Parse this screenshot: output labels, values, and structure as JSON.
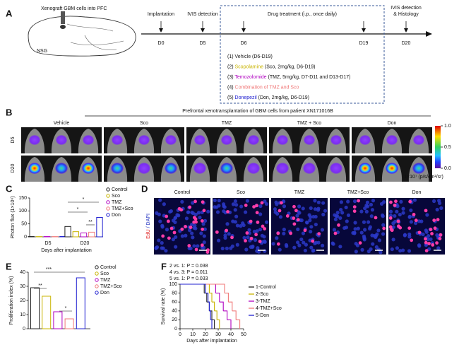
{
  "panel_a": {
    "label": "A",
    "xenograft": "Xenograft GBM cells into PFC",
    "strain": "NSG",
    "box_title": "Drug treatment (i.p., once daily)",
    "timeline": [
      {
        "day": "D0",
        "label": [
          "Implantation"
        ]
      },
      {
        "day": "D5",
        "label": [
          "IVIS detection"
        ]
      },
      {
        "day": "D6"
      },
      {
        "day": "D19"
      },
      {
        "day": "D20",
        "label": [
          "IVIS detection",
          "& Histology"
        ]
      }
    ],
    "treatments": [
      {
        "num": "(1)",
        "name": "Vehicle",
        "detail": "(D6-D19)",
        "color": "#222222"
      },
      {
        "num": "(2)",
        "name": "Scopolamine",
        "detail": "(Sco, 2mg/kg, D6-D19)",
        "color": "#c8b400"
      },
      {
        "num": "(3)",
        "name": "Temozolomide",
        "detail": "(TMZ, 5mg/kg, D7-D11 and D13-D17)",
        "color": "#b000c0"
      },
      {
        "num": "(4)",
        "name": "Combination of TMZ and Sco",
        "color": "#f07878"
      },
      {
        "num": "(5)",
        "name": "Donepezil",
        "detail": "(Don, 2mg/kg, D6-D19)",
        "color": "#2020d0"
      }
    ]
  },
  "panel_b": {
    "label": "B",
    "title": "Prefrontal xenotransplantation of GBM cells from patient XN171016B",
    "groups": [
      "Vehicle",
      "Sco",
      "TMZ",
      "TMZ + Sco",
      "Don"
    ],
    "rows": [
      "D5",
      "D20"
    ],
    "colorbar_ticks": [
      {
        "value": 1,
        "label": "1.0"
      },
      {
        "value": 0.5,
        "label": "0.5"
      },
      {
        "value": 0,
        "label": "0.0"
      }
    ],
    "colorbar_unit": "1×10⁷ (p/s/cm²/sr)"
  },
  "panel_d": {
    "label": "D",
    "groups": [
      "Control",
      "Sco",
      "TMZ",
      "TMZ+Sco",
      "Don"
    ],
    "stain": [
      "EdU",
      "/ DAPI"
    ]
  },
  "chart_data": [
    {
      "type": "grouped_bar",
      "label": "C",
      "ylabel": "Photon flux (1×10⁶)",
      "xlabel": "Days after implantation",
      "categories": [
        "D5",
        "D20"
      ],
      "series": [
        {
          "name": "Control",
          "color": "#222222",
          "values": [
            1.2,
            40
          ]
        },
        {
          "name": "Sco",
          "color": "#c8b400",
          "values": [
            1,
            20
          ]
        },
        {
          "name": "TMZ",
          "color": "#b000c0",
          "values": [
            1.1,
            15
          ]
        },
        {
          "name": "TMZ+Sco",
          "color": "#f07878",
          "values": [
            1,
            18
          ]
        },
        {
          "name": "Don",
          "color": "#2020d0",
          "values": [
            1.3,
            75
          ]
        }
      ],
      "ylim": [
        0,
        150
      ],
      "yticks": [
        0,
        50,
        100,
        150
      ],
      "significance": [
        "*",
        "*",
        "**"
      ]
    },
    {
      "type": "grouped_bar",
      "label": "E",
      "ylabel": "Proliferation index (%)",
      "categories": [
        null
      ],
      "series": [
        {
          "name": "Control",
          "color": "#222222",
          "values": [
            29
          ]
        },
        {
          "name": "Sco",
          "color": "#c8b400",
          "values": [
            23
          ]
        },
        {
          "name": "TMZ",
          "color": "#b000c0",
          "values": [
            12
          ]
        },
        {
          "name": "TMZ+Sco",
          "color": "#f07878",
          "values": [
            7
          ]
        },
        {
          "name": "Don",
          "color": "#2020d0",
          "values": [
            36
          ]
        }
      ],
      "ylim": [
        0,
        40
      ],
      "yticks": [
        0,
        10,
        20,
        30,
        40
      ],
      "significance": [
        "***",
        "**",
        "*"
      ]
    },
    {
      "type": "step",
      "label": "F",
      "ylabel": "Survival rate (%)",
      "xlabel": "Days after implantation",
      "annotations": [
        "2 vs. 1: P = 0.038",
        "4 vs. 3: P = 0.011",
        "5 vs. 1: P = 0.033"
      ],
      "xlim": [
        0,
        50
      ],
      "xticks": [
        0,
        10,
        20,
        30,
        40,
        50
      ],
      "ylim": [
        0,
        100
      ],
      "yticks": [
        0,
        20,
        40,
        60,
        80,
        100
      ],
      "series": [
        {
          "name": "1-Control",
          "color": "#222222",
          "x": [
            0,
            19,
            21,
            23,
            25,
            27
          ],
          "values": [
            100,
            80,
            60,
            40,
            20,
            0
          ]
        },
        {
          "name": "2-Sco",
          "color": "#c8b400",
          "x": [
            0,
            23,
            25,
            27,
            29,
            31
          ],
          "values": [
            100,
            80,
            60,
            40,
            20,
            0
          ]
        },
        {
          "name": "3-TMZ",
          "color": "#b000c0",
          "x": [
            0,
            28,
            31,
            34,
            37,
            40
          ],
          "values": [
            100,
            80,
            60,
            40,
            20,
            0
          ]
        },
        {
          "name": "4-TMZ+Sco",
          "color": "#f07878",
          "x": [
            0,
            35,
            38,
            41,
            44,
            47
          ],
          "values": [
            100,
            80,
            60,
            40,
            20,
            0
          ]
        },
        {
          "name": "5-Don",
          "color": "#2020d0",
          "x": [
            0,
            20,
            22,
            23,
            24,
            25
          ],
          "values": [
            100,
            80,
            60,
            40,
            20,
            0
          ]
        }
      ]
    }
  ]
}
